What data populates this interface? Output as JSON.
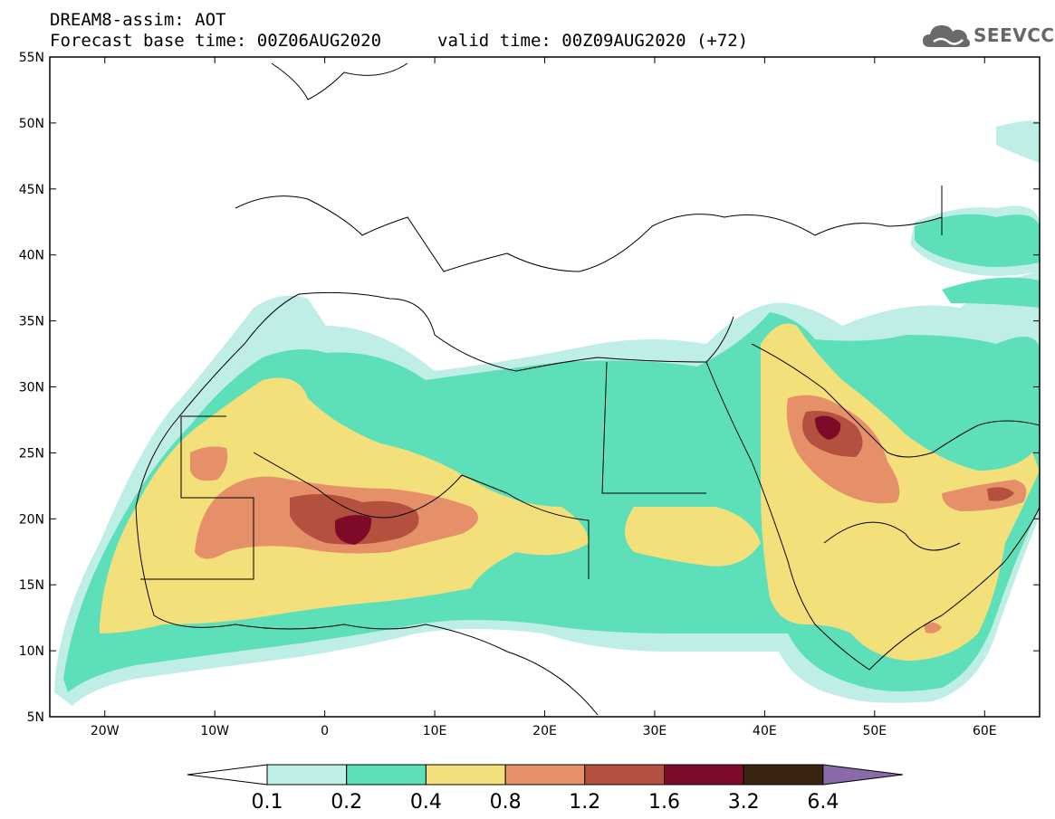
{
  "header": {
    "title": "DREAM8-assim: AOT",
    "base_time": "Forecast base time: 00Z06AUG2020",
    "valid_time": "valid time: 00Z09AUG2020 (+72)"
  },
  "logo": {
    "text": "SEEVCCC",
    "icon": "cloud-icon"
  },
  "map": {
    "lat_labels": [
      "55N",
      "50N",
      "45N",
      "40N",
      "35N",
      "30N",
      "25N",
      "20N",
      "15N",
      "10N",
      "5N"
    ],
    "lon_labels": [
      "20W",
      "10W",
      "0",
      "10E",
      "20E",
      "30E",
      "40E",
      "50E",
      "60E"
    ],
    "lon_range": [
      -25,
      65
    ],
    "lat_range": [
      5,
      55
    ]
  },
  "colorbar": {
    "labels": [
      "0.1",
      "0.2",
      "0.4",
      "0.8",
      "1.2",
      "1.6",
      "3.2",
      "6.4"
    ],
    "colors": [
      "#bfeee6",
      "#5ddfb9",
      "#f4e07a",
      "#e6906a",
      "#b3503e",
      "#7e0a28",
      "#3a2412",
      "#8a6aa8"
    ],
    "under_color": "#ffffff"
  }
}
